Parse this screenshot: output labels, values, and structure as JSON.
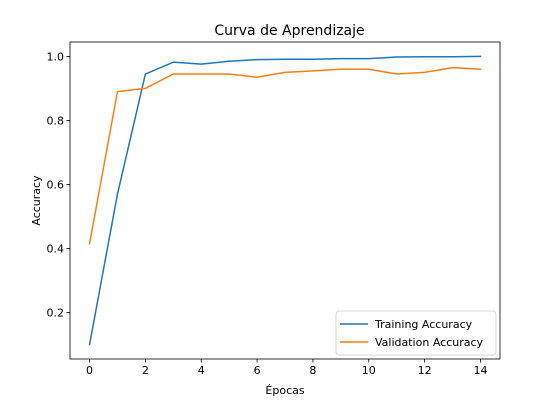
{
  "chart_data": {
    "type": "line",
    "title": "Curva de Aprendizaje",
    "xlabel": "Épocas",
    "ylabel": "Accuracy",
    "xlim": [
      -0.7,
      14.7
    ],
    "ylim": [
      0.055,
      1.045
    ],
    "xticks": [
      0,
      2,
      4,
      6,
      8,
      10,
      12,
      14
    ],
    "yticks": [
      0.2,
      0.4,
      0.6,
      0.8,
      1.0
    ],
    "xtick_labels": [
      "0",
      "2",
      "4",
      "6",
      "8",
      "10",
      "12",
      "14"
    ],
    "ytick_labels": [
      "0.2",
      "0.4",
      "0.6",
      "0.8",
      "1.0"
    ],
    "grid": false,
    "legend_position": "lower-right",
    "x": [
      0,
      1,
      2,
      3,
      4,
      5,
      6,
      7,
      8,
      9,
      10,
      11,
      12,
      13,
      14
    ],
    "series": [
      {
        "name": "Training Accuracy",
        "color": "#1f77b4",
        "values": [
          0.1,
          0.57,
          0.945,
          0.982,
          0.976,
          0.985,
          0.99,
          0.991,
          0.991,
          0.993,
          0.993,
          0.998,
          0.999,
          0.999,
          1.0
        ]
      },
      {
        "name": "Validation Accuracy",
        "color": "#ff7f0e",
        "values": [
          0.415,
          0.89,
          0.9,
          0.945,
          0.945,
          0.945,
          0.935,
          0.95,
          0.955,
          0.96,
          0.96,
          0.945,
          0.95,
          0.965,
          0.96
        ]
      }
    ]
  }
}
